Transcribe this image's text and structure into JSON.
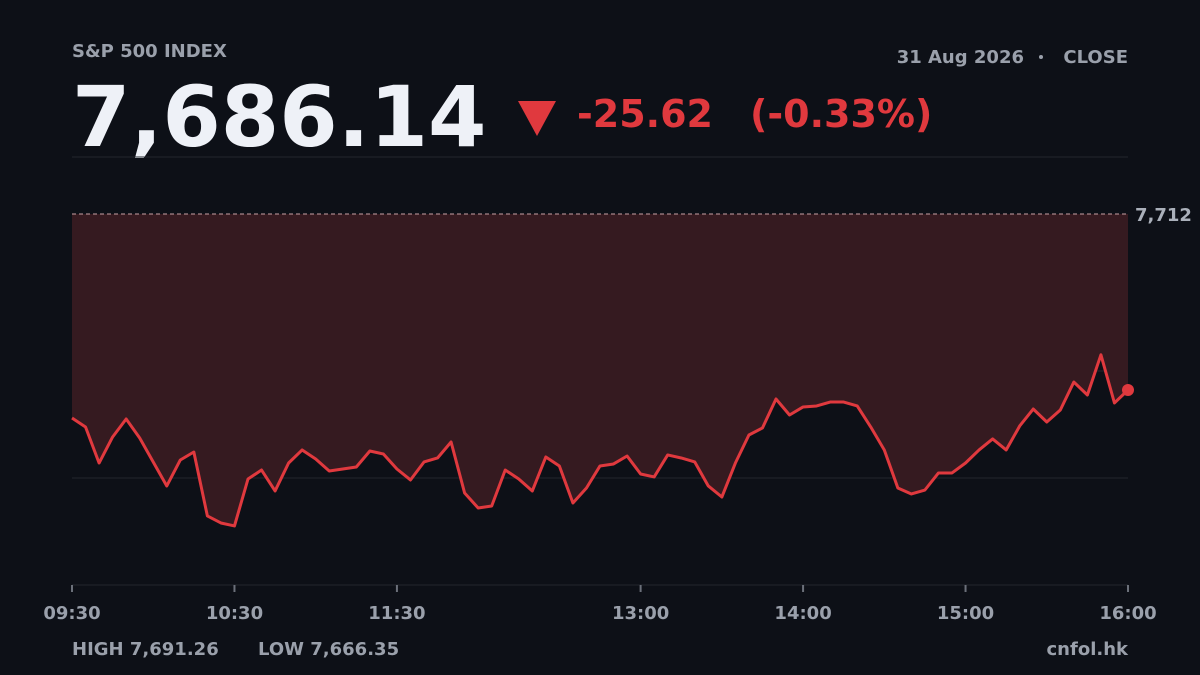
{
  "chart_data": {
    "type": "line",
    "title": "S&P 500 INDEX",
    "date": "31 Aug 2026",
    "status": "CLOSE",
    "last": "7,686.14",
    "change": "-25.62",
    "change_pct": "(-0.33%)",
    "reference": {
      "value": 7711.76,
      "label": "7,712"
    },
    "high_label": "HIGH",
    "high": "7,691.26",
    "low_label": "LOW",
    "low": "7,666.35",
    "source": "cnfol.hk",
    "color": "#e0393e",
    "x": [
      570,
      575,
      580,
      585,
      590,
      595,
      600,
      605,
      610,
      615,
      620,
      625,
      630,
      635,
      640,
      645,
      650,
      655,
      660,
      665,
      670,
      675,
      680,
      685,
      690,
      695,
      700,
      705,
      710,
      715,
      720,
      725,
      730,
      735,
      740,
      745,
      750,
      755,
      760,
      765,
      770,
      775,
      780,
      785,
      790,
      795,
      800,
      805,
      810,
      815,
      820,
      825,
      830,
      835,
      840,
      845,
      850,
      855,
      860,
      865,
      870,
      875,
      880,
      885,
      890,
      895,
      900,
      905,
      910,
      915,
      920,
      925,
      930,
      935,
      940,
      945,
      950,
      955,
      960
    ],
    "values": [
      7682.06,
      7680.75,
      7675.51,
      7679.3,
      7681.92,
      7679.15,
      7675.66,
      7672.17,
      7675.95,
      7677.11,
      7667.8,
      7666.78,
      7666.35,
      7673.18,
      7674.49,
      7671.44,
      7675.51,
      7677.41,
      7676.1,
      7674.35,
      7674.64,
      7674.93,
      7677.26,
      7676.82,
      7674.64,
      7673.04,
      7675.66,
      7676.24,
      7678.57,
      7671.15,
      7668.96,
      7669.25,
      7674.49,
      7673.18,
      7671.44,
      7676.39,
      7675.08,
      7669.69,
      7671.87,
      7675.08,
      7675.37,
      7676.53,
      7673.91,
      7673.48,
      7676.68,
      7676.24,
      7675.66,
      7672.17,
      7670.56,
      7675.51,
      7679.59,
      7680.61,
      7684.83,
      7682.5,
      7683.67,
      7683.81,
      7684.39,
      7684.39,
      7683.81,
      7680.75,
      7677.41,
      7671.87,
      7671.0,
      7671.58,
      7674.06,
      7674.06,
      7675.51,
      7677.41,
      7679.01,
      7677.41,
      7680.9,
      7683.37,
      7681.48,
      7683.23,
      7687.3,
      7685.41,
      7691.26,
      7684.25,
      7686.14
    ],
    "xlim": [
      570,
      960
    ],
    "xticks": [
      {
        "value": 570,
        "label": "09:30"
      },
      {
        "value": 630,
        "label": "10:30"
      },
      {
        "value": 690,
        "label": "11:30"
      },
      {
        "value": 780,
        "label": "13:00"
      },
      {
        "value": 840,
        "label": "14:00"
      },
      {
        "value": 900,
        "label": "15:00"
      },
      {
        "value": 960,
        "label": "16:00"
      }
    ],
    "ylim": [
      7657.75,
      7720.06
    ]
  }
}
